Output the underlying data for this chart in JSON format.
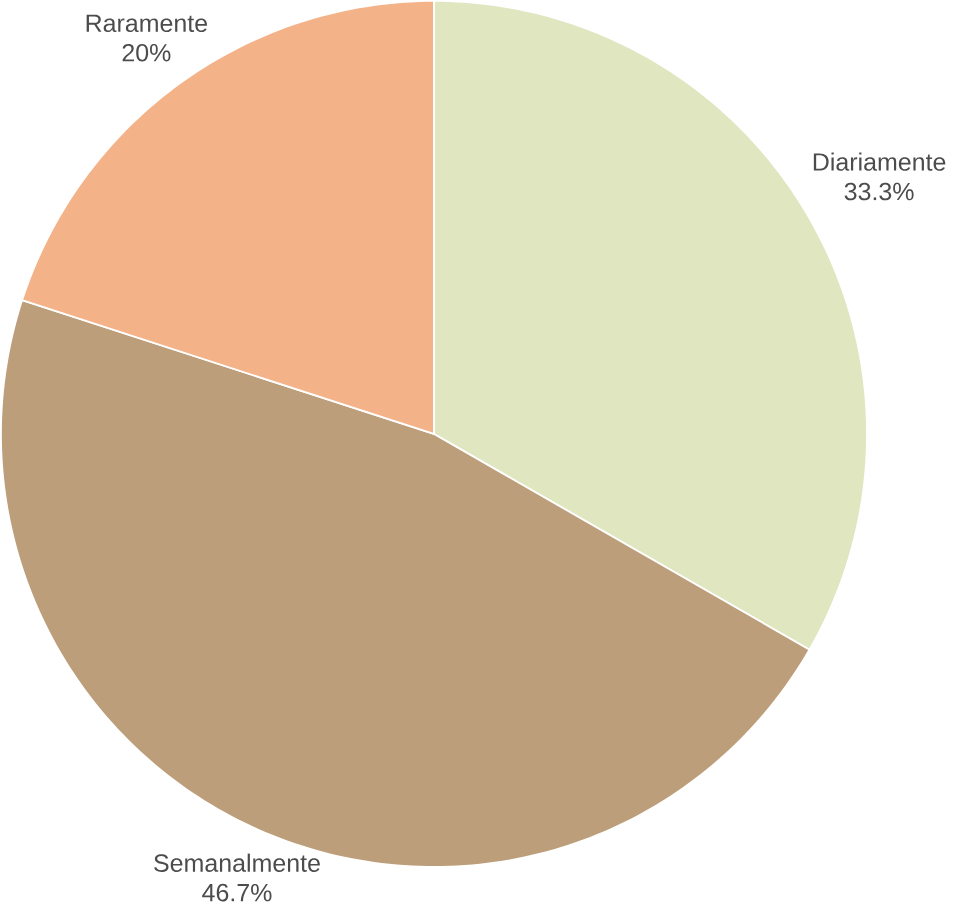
{
  "chart_data": {
    "type": "pie",
    "categories": [
      "Diariamente",
      "Semanalmente",
      "Raramente"
    ],
    "values": [
      33.3,
      46.7,
      20
    ],
    "value_labels": [
      "33.3%",
      "46.7%",
      "20%"
    ],
    "colors": [
      "#dfe6c0",
      "#bd9e7a",
      "#f3b287"
    ]
  }
}
